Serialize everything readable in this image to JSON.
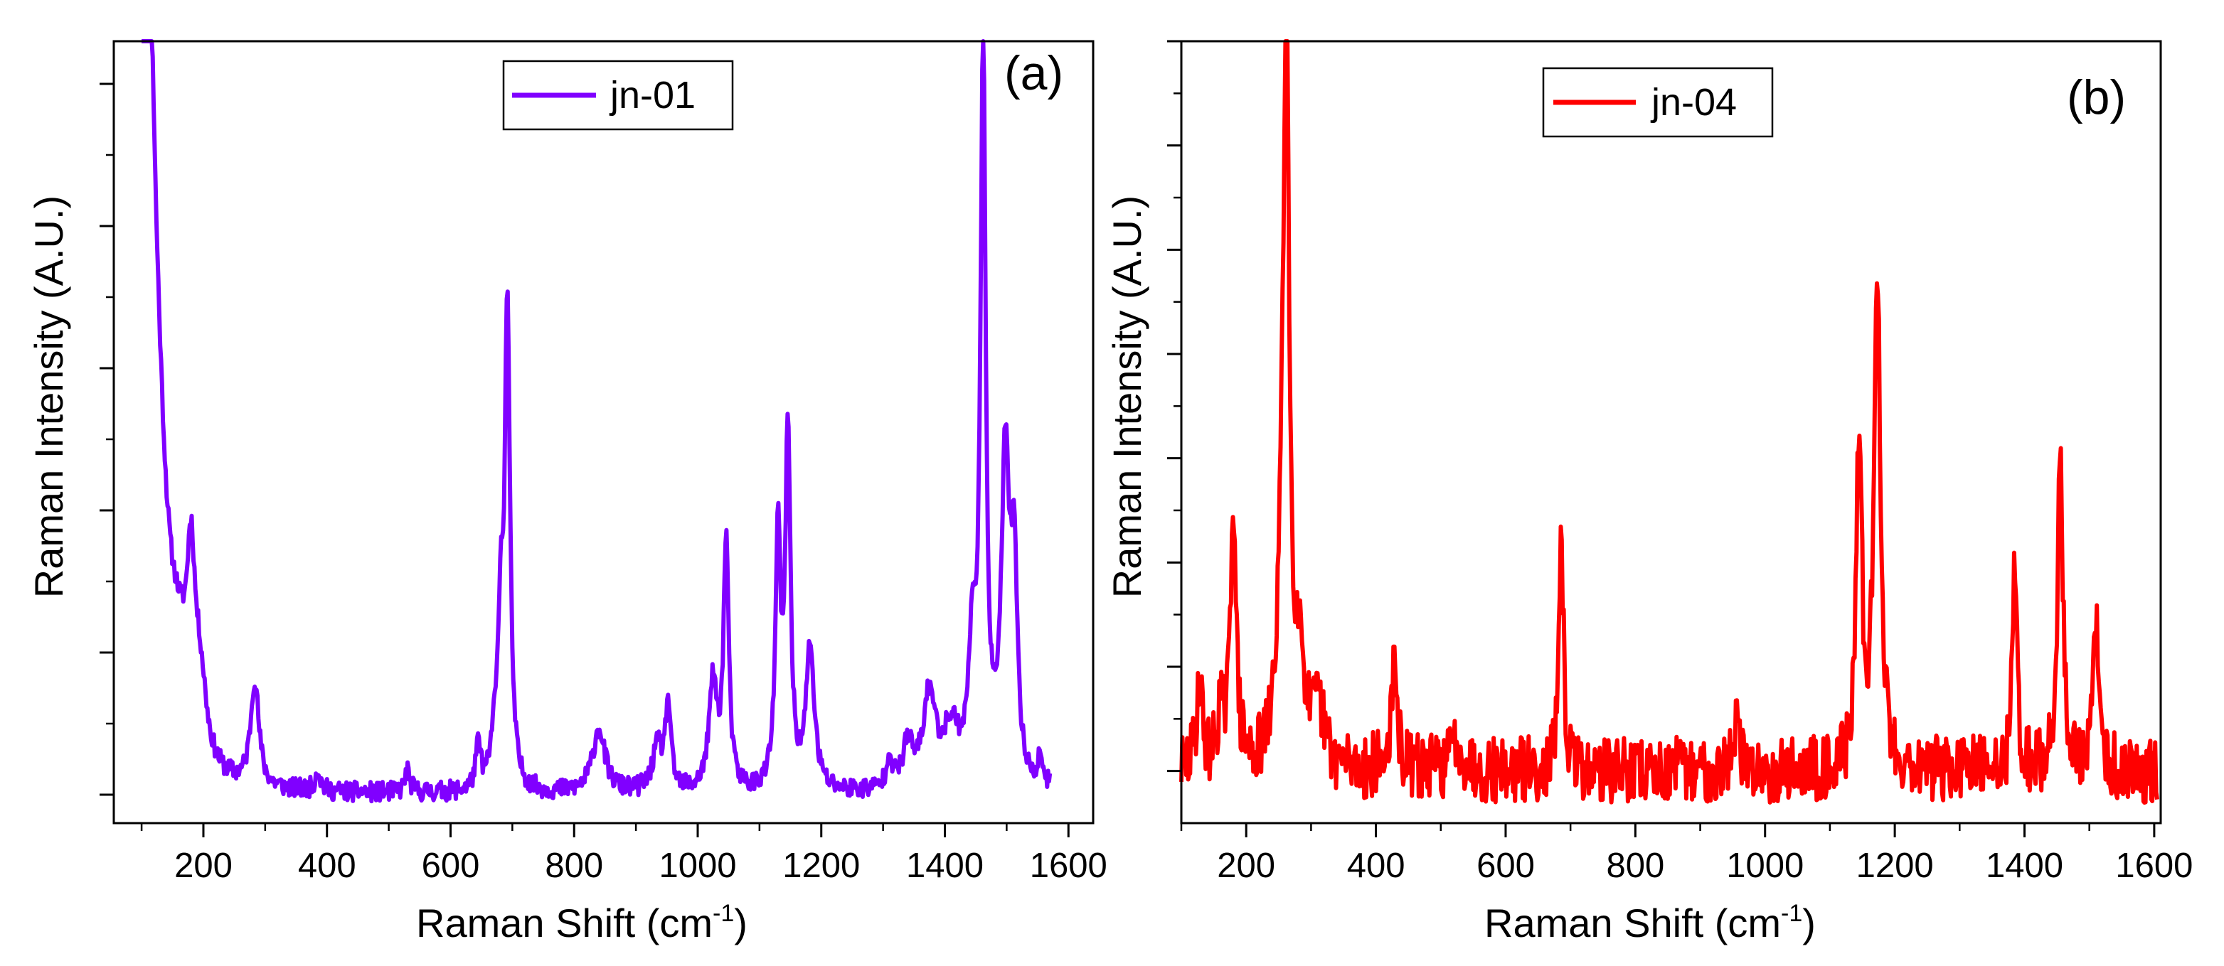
{
  "chart_data": [
    {
      "panel": "(a)",
      "type": "line",
      "series": [
        {
          "name": "jn-01",
          "color": "#8000ff"
        }
      ],
      "xlabel": "Raman Shift (cm",
      "xlabel_sup": "-1",
      "xlabel_tail": ")",
      "ylabel": "Raman Intensity (A.U.)",
      "xlim": [
        55,
        1640
      ],
      "ylim": [
        -0.2,
        10.8
      ],
      "xticks": [
        "200",
        "400",
        "600",
        "800",
        "1000",
        "1200",
        "1400",
        "1600"
      ],
      "legend": "top-center",
      "baseline": 0.2,
      "start": {
        "x": 100,
        "y": 7.7
      },
      "end": 1570,
      "peaks": [
        {
          "x": 108,
          "h": 8.3,
          "w": 12
        },
        {
          "x": 125,
          "h": 2.5,
          "w": 20
        },
        {
          "x": 160,
          "h": 1.0,
          "w": 20
        },
        {
          "x": 180,
          "h": 2.3,
          "w": 8
        },
        {
          "x": 195,
          "h": 1.0,
          "w": 12
        },
        {
          "x": 283,
          "h": 1.5,
          "w": 8
        },
        {
          "x": 385,
          "h": 0.3,
          "w": 5
        },
        {
          "x": 530,
          "h": 0.3,
          "w": 5
        },
        {
          "x": 645,
          "h": 0.6,
          "w": 5
        },
        {
          "x": 670,
          "h": 0.5,
          "w": 6
        },
        {
          "x": 681,
          "h": 2.2,
          "w": 5
        },
        {
          "x": 692,
          "h": 6.8,
          "w": 5
        },
        {
          "x": 840,
          "h": 0.9,
          "w": 12
        },
        {
          "x": 935,
          "h": 0.6,
          "w": 10
        },
        {
          "x": 952,
          "h": 1.2,
          "w": 5
        },
        {
          "x": 1025,
          "h": 1.5,
          "w": 8
        },
        {
          "x": 1046,
          "h": 3.5,
          "w": 5
        },
        {
          "x": 1130,
          "h": 3.5,
          "w": 5
        },
        {
          "x": 1146,
          "h": 5.0,
          "w": 5
        },
        {
          "x": 1182,
          "h": 2.0,
          "w": 8
        },
        {
          "x": 1310,
          "h": 0.5,
          "w": 5
        },
        {
          "x": 1340,
          "h": 0.6,
          "w": 10
        },
        {
          "x": 1375,
          "h": 1.3,
          "w": 12
        },
        {
          "x": 1410,
          "h": 0.8,
          "w": 15
        },
        {
          "x": 1445,
          "h": 1.8,
          "w": 8
        },
        {
          "x": 1462,
          "h": 10.2,
          "w": 5
        },
        {
          "x": 1498,
          "h": 4.5,
          "w": 8
        },
        {
          "x": 1512,
          "h": 2.8,
          "w": 6
        },
        {
          "x": 1555,
          "h": 0.4,
          "w": 5
        }
      ],
      "noise": 0.14,
      "seed": 11
    },
    {
      "panel": "(b)",
      "type": "line",
      "series": [
        {
          "name": "jn-04",
          "color": "#ff0000"
        }
      ],
      "xlabel": "Raman Shift (cm",
      "xlabel_sup": "-1",
      "xlabel_tail": ")",
      "ylabel": "Raman Intensity (A.U.)",
      "xlim": [
        100,
        1610
      ],
      "ylim": [
        -0.3,
        7.2
      ],
      "xticks": [
        "200",
        "400",
        "600",
        "800",
        "1000",
        "1200",
        "1400",
        "1600"
      ],
      "legend": "top-center",
      "baseline": 0.2,
      "start": {
        "x": 100,
        "y": 0.1
      },
      "end": 1605,
      "peaks": [
        {
          "x": 128,
          "h": 0.9,
          "w": 5
        },
        {
          "x": 160,
          "h": 0.5,
          "w": 6
        },
        {
          "x": 180,
          "h": 2.6,
          "w": 5
        },
        {
          "x": 255,
          "h": 1.5,
          "w": 8
        },
        {
          "x": 262,
          "h": 6.6,
          "w": 5
        },
        {
          "x": 282,
          "h": 1.0,
          "w": 10
        },
        {
          "x": 312,
          "h": 0.5,
          "w": 10
        },
        {
          "x": 428,
          "h": 0.9,
          "w": 6
        },
        {
          "x": 525,
          "h": 0.3,
          "w": 10
        },
        {
          "x": 686,
          "h": 2.2,
          "w": 4
        },
        {
          "x": 955,
          "h": 0.5,
          "w": 5
        },
        {
          "x": 1145,
          "h": 3.2,
          "w": 5
        },
        {
          "x": 1173,
          "h": 4.7,
          "w": 6
        },
        {
          "x": 1385,
          "h": 2.1,
          "w": 4
        },
        {
          "x": 1455,
          "h": 3.0,
          "w": 5
        },
        {
          "x": 1510,
          "h": 1.4,
          "w": 5
        }
      ],
      "noise": 0.32,
      "seed": 29
    }
  ]
}
